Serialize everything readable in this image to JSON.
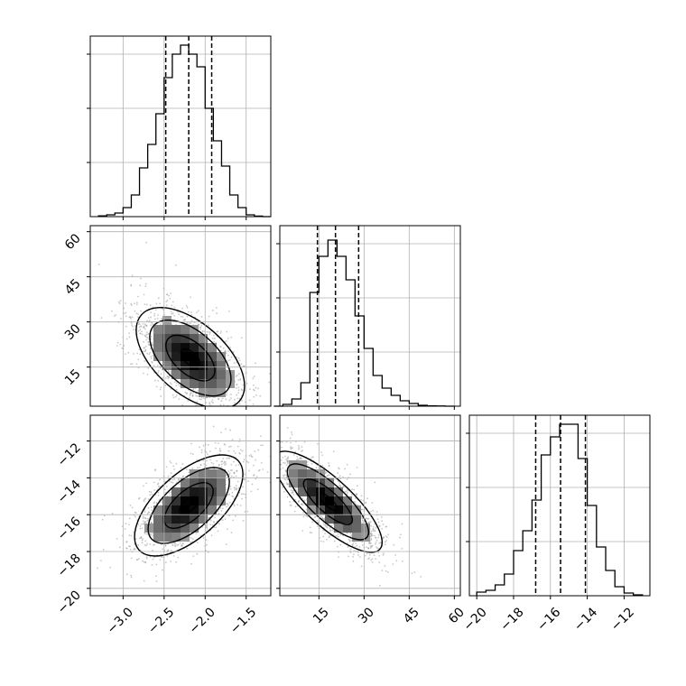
{
  "chart_data": [
    {
      "type": "histogram",
      "panel": "hist-param-1",
      "xlim": [
        -3.4,
        -1.2
      ],
      "ylim": [
        0,
        1.0
      ],
      "y_ticks": [
        0.3,
        0.6,
        0.9
      ],
      "bin_edges": [
        -3.3,
        -3.2,
        -3.1,
        -3.0,
        -2.9,
        -2.8,
        -2.7,
        -2.6,
        -2.5,
        -2.4,
        -2.3,
        -2.2,
        -2.1,
        -2.0,
        -1.9,
        -1.8,
        -1.7,
        -1.6,
        -1.5,
        -1.4,
        -1.3,
        -1.2
      ],
      "counts": [
        0.004,
        0.01,
        0.02,
        0.05,
        0.12,
        0.27,
        0.4,
        0.57,
        0.77,
        0.9,
        0.95,
        0.9,
        0.83,
        0.6,
        0.42,
        0.28,
        0.12,
        0.05,
        0.01,
        0.003,
        0.0
      ],
      "quantile_lines": [
        -2.48,
        -2.2,
        -1.92
      ],
      "grid": true
    },
    {
      "type": "heatmap",
      "panel": "scatter-param-2-vs-param-1",
      "xlim": [
        -3.4,
        -1.2
      ],
      "ylim": [
        2,
        62
      ],
      "x_ticks": [
        -3.0,
        -2.5,
        -2.0,
        -1.5
      ],
      "y_ticks": [
        15,
        30,
        45,
        60
      ],
      "y_tick_labels": [
        "15",
        "30",
        "45",
        "60"
      ],
      "density_peak": [
        -2.18,
        18
      ],
      "correlation": -0.55,
      "contour_levels": 4,
      "grid": true
    },
    {
      "type": "histogram",
      "panel": "hist-param-2",
      "xlim": [
        2,
        62
      ],
      "ylim": [
        0,
        1.0
      ],
      "y_ticks": [
        0.3,
        0.6,
        0.9
      ],
      "bin_edges": [
        0,
        3,
        6,
        9,
        12,
        15,
        18,
        21,
        24,
        27,
        30,
        33,
        36,
        39,
        42,
        45,
        48,
        51,
        54,
        57,
        60
      ],
      "counts": [
        0.0,
        0.01,
        0.04,
        0.13,
        0.63,
        0.83,
        0.92,
        0.83,
        0.7,
        0.5,
        0.32,
        0.17,
        0.1,
        0.06,
        0.03,
        0.015,
        0.005,
        0.002,
        0.001,
        0.0
      ],
      "quantile_lines": [
        14.5,
        20.5,
        28.2
      ],
      "grid": true
    },
    {
      "type": "heatmap",
      "panel": "scatter-param-3-vs-param-1",
      "xlim": [
        -3.4,
        -1.2
      ],
      "ylim": [
        -20.4,
        -10.6
      ],
      "x_ticks": [
        -3.0,
        -2.5,
        -2.0,
        -1.5
      ],
      "x_tick_labels": [
        "−3.0",
        "−2.5",
        "−2.0",
        "−1.5"
      ],
      "y_ticks": [
        -20,
        -18,
        -16,
        -14,
        -12
      ],
      "y_tick_labels": [
        "−20",
        "−18",
        "−16",
        "−14",
        "−12"
      ],
      "density_peak": [
        -2.2,
        -15.5
      ],
      "correlation": 0.62,
      "contour_levels": 4,
      "grid": true
    },
    {
      "type": "heatmap",
      "panel": "scatter-param-3-vs-param-2",
      "xlim": [
        2,
        62
      ],
      "ylim": [
        -20.4,
        -10.6
      ],
      "x_ticks": [
        15,
        30,
        45,
        60
      ],
      "x_tick_labels": [
        "15",
        "30",
        "45",
        "60"
      ],
      "y_ticks": [
        -20,
        -18,
        -16,
        -14,
        -12
      ],
      "density_peak": [
        18,
        -15.3
      ],
      "correlation": -0.8,
      "contour_levels": 4,
      "grid": true
    },
    {
      "type": "histogram",
      "panel": "hist-param-3",
      "xlim": [
        -20.4,
        -10.6
      ],
      "ylim": [
        0,
        1.0
      ],
      "y_ticks": [
        0.3,
        0.6,
        0.9
      ],
      "x_ticks": [
        -20,
        -18,
        -16,
        -14,
        -12
      ],
      "x_tick_labels": [
        "−20",
        "−18",
        "−16",
        "−14",
        "−12"
      ],
      "bin_edges": [
        -20.0,
        -19.5,
        -19.0,
        -18.5,
        -18.0,
        -17.5,
        -17.0,
        -16.5,
        -16.0,
        -15.5,
        -15.0,
        -14.5,
        -14.0,
        -13.5,
        -13.0,
        -12.5,
        -12.0,
        -11.5,
        -11.0
      ],
      "counts": [
        0.02,
        0.03,
        0.06,
        0.12,
        0.25,
        0.36,
        0.53,
        0.78,
        0.88,
        0.95,
        0.95,
        0.76,
        0.5,
        0.27,
        0.14,
        0.05,
        0.015,
        0.005
      ],
      "quantile_lines": [
        -16.8,
        -15.45,
        -14.1
      ],
      "grid": true
    }
  ]
}
